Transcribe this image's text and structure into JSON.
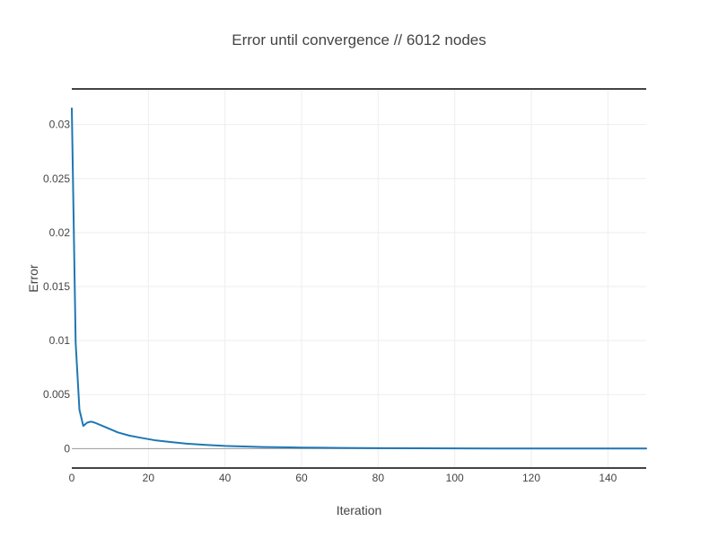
{
  "chart_data": {
    "type": "line",
    "title": "Error until convergence // 6012 nodes",
    "xlabel": "Iteration",
    "ylabel": "Error",
    "xlim": [
      0,
      150
    ],
    "ylim": [
      -0.0018,
      0.0333
    ],
    "x_ticks": [
      0,
      20,
      40,
      60,
      80,
      100,
      120,
      140
    ],
    "x_tick_labels": [
      "0",
      "20",
      "40",
      "60",
      "80",
      "100",
      "120",
      "140"
    ],
    "y_ticks": [
      0,
      0.005,
      0.01,
      0.015,
      0.02,
      0.025,
      0.03
    ],
    "y_tick_labels": [
      "0",
      "0.005",
      "0.01",
      "0.015",
      "0.02",
      "0.025",
      "0.03"
    ],
    "grid": true,
    "series_color": "#1f77b4",
    "series": [
      {
        "x": [
          0,
          1,
          2,
          3,
          4,
          5,
          6,
          8,
          10,
          12,
          15,
          18,
          22,
          26,
          30,
          35,
          40,
          45,
          50,
          55,
          60,
          65,
          70,
          80,
          90,
          100,
          110,
          120,
          130,
          140,
          150
        ],
        "y": [
          0.0315,
          0.0098,
          0.0036,
          0.0021,
          0.0024,
          0.0025,
          0.0024,
          0.0021,
          0.0018,
          0.0015,
          0.0012,
          0.001,
          0.00075,
          0.0006,
          0.00045,
          0.00035,
          0.00025,
          0.0002,
          0.00015,
          0.00012,
          0.0001,
          8e-05,
          6e-05,
          4e-05,
          3e-05,
          2e-05,
          1.5e-05,
          1e-05,
          8e-06,
          5e-06,
          3e-06
        ]
      }
    ]
  }
}
